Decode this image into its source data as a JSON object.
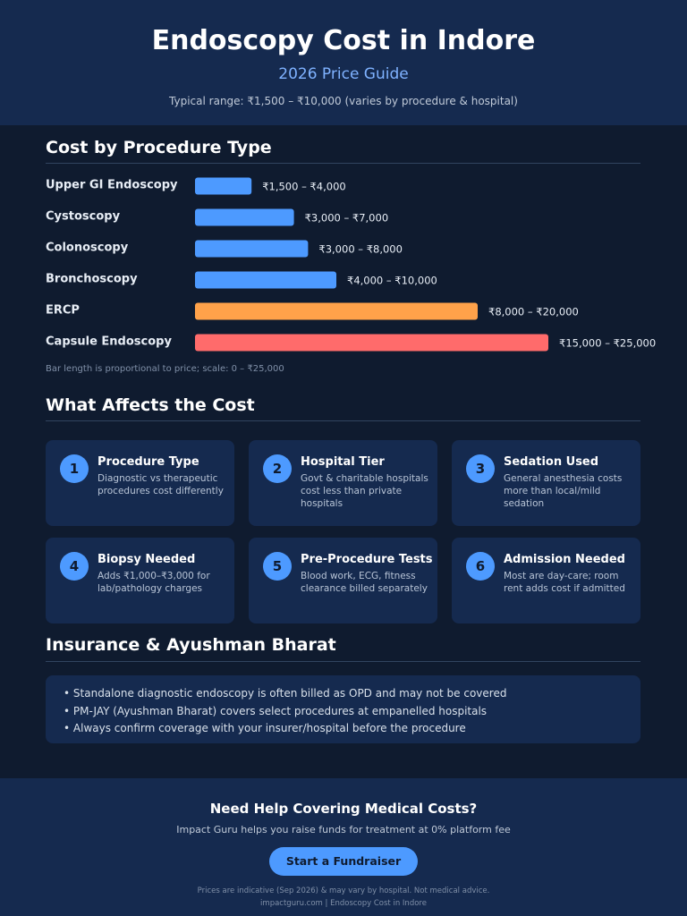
{
  "header": {
    "title": "Endoscopy Cost in Indore",
    "subtitle": "2026 Price Guide",
    "range_note": "Typical range: ₹1,500 – ₹10,000 (varies by procedure & hospital)"
  },
  "chart_data": {
    "type": "bar",
    "orientation": "horizontal",
    "title": "Cost by Procedure Type",
    "categories": [
      "Upper GI Endoscopy",
      "Cystoscopy",
      "Colonoscopy",
      "Bronchoscopy",
      "ERCP",
      "Capsule Endoscopy"
    ],
    "values": [
      4000,
      7000,
      8000,
      10000,
      20000,
      25000
    ],
    "value_labels": [
      "₹1,500 – ₹4,000",
      "₹3,000 – ₹7,000",
      "₹3,000 – ₹8,000",
      "₹4,000 – ₹10,000",
      "₹8,000 – ₹20,000",
      "₹15,000 – ₹25,000"
    ],
    "colors": [
      "#4d9aff",
      "#4d9aff",
      "#4d9aff",
      "#4d9aff",
      "#ffa24a",
      "#ff6b6b"
    ],
    "xlim": [
      0,
      25000
    ],
    "note": "Bar length is proportional to price; scale: 0 – ₹25,000"
  },
  "factors": {
    "title": "What Affects the Cost",
    "items": [
      {
        "number": "1",
        "title": "Procedure Type",
        "description": "Diagnostic vs therapeutic procedures cost differently"
      },
      {
        "number": "2",
        "title": "Hospital Tier",
        "description": "Govt & charitable hospitals cost less than private hospitals"
      },
      {
        "number": "3",
        "title": "Sedation Used",
        "description": "General anesthesia costs more than local/mild sedation"
      },
      {
        "number": "4",
        "title": "Biopsy Needed",
        "description": "Adds ₹1,000–₹3,000 for lab/pathology charges"
      },
      {
        "number": "5",
        "title": "Pre-Procedure Tests",
        "description": "Blood work, ECG, fitness clearance billed separately"
      },
      {
        "number": "6",
        "title": "Admission Needed",
        "description": "Most are day-care; room rent adds cost if admitted"
      }
    ]
  },
  "insurance": {
    "title": "Insurance & Ayushman Bharat",
    "points": [
      "Standalone diagnostic endoscopy is often billed as OPD and may not be covered",
      "PM-JAY (Ayushman Bharat) covers select procedures at empanelled hospitals",
      "Always confirm coverage with your insurer/hospital before the procedure"
    ]
  },
  "cta": {
    "title": "Need Help Covering Medical Costs?",
    "text": "Impact Guru helps you raise funds for treatment at 0% platform fee",
    "button": "Start a Fundraiser"
  },
  "footer": {
    "lines": [
      "Prices are indicative (Sep 2026) & may vary by hospital. Not medical advice.",
      "impactguru.com | Endoscopy Cost in Indore"
    ]
  }
}
